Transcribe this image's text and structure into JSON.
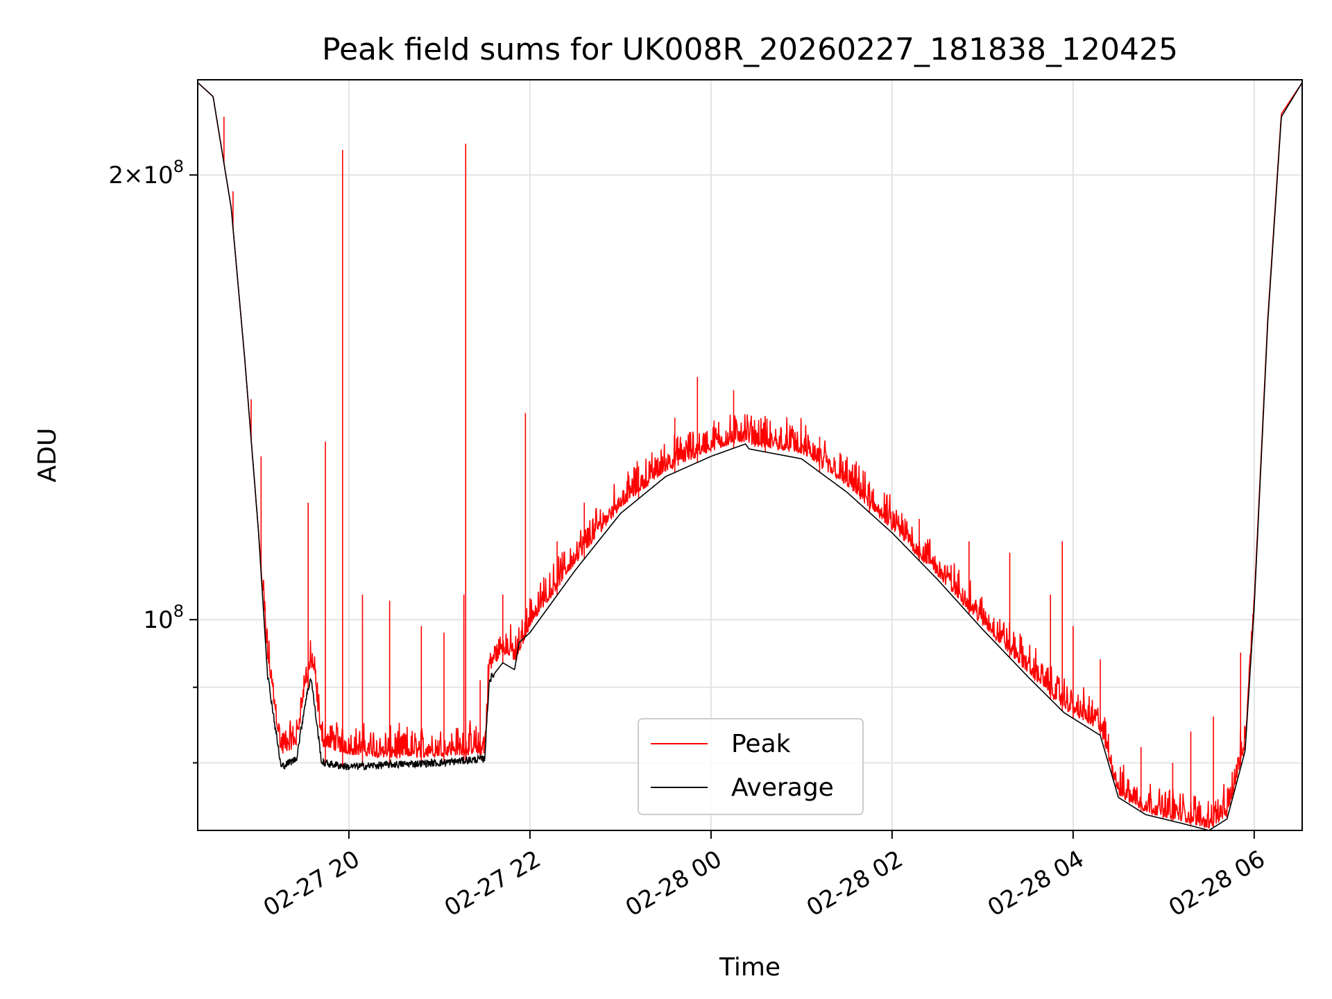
{
  "chart_data": {
    "type": "line",
    "title": "Peak field sums for UK008R_20260227_181838_120425",
    "xlabel": "Time",
    "ylabel": "ADU",
    "yscale": "log",
    "grid": true,
    "legend_position": "bottom-center",
    "x_unit": "hours since 2026-02-27 00:00",
    "xlim": [
      18.33,
      30.53
    ],
    "ylim": [
      72000000,
      232000000
    ],
    "x_ticks": [
      {
        "value": 20,
        "label": "02-27 20"
      },
      {
        "value": 22,
        "label": "02-27 22"
      },
      {
        "value": 24,
        "label": "02-28 00"
      },
      {
        "value": 26,
        "label": "02-28 02"
      },
      {
        "value": 28,
        "label": "02-28 04"
      },
      {
        "value": 30,
        "label": "02-28 06"
      }
    ],
    "y_ticks": [
      {
        "value": 200000000,
        "label_base": "2×10",
        "label_exp": "8"
      },
      {
        "value": 100000000,
        "label_base": "10",
        "label_exp": "8"
      }
    ],
    "y_minor_ticks": [
      80000000,
      90000000
    ],
    "series": [
      {
        "name": "Peak",
        "color": "#ff0000",
        "points": [
          [
            18.33,
            231000000
          ],
          [
            18.5,
            226000000
          ],
          [
            18.7,
            190000000
          ],
          [
            18.85,
            150000000
          ],
          [
            19.0,
            115000000
          ],
          [
            19.1,
            94000000
          ],
          [
            19.25,
            81000000
          ],
          [
            19.42,
            82000000
          ],
          [
            19.52,
            90000000
          ],
          [
            19.6,
            93000000
          ],
          [
            19.7,
            82000000
          ],
          [
            20.0,
            81000000
          ],
          [
            20.5,
            80500000
          ],
          [
            21.0,
            80800000
          ],
          [
            21.5,
            81000000
          ],
          [
            21.55,
            92000000
          ],
          [
            21.7,
            95000000
          ],
          [
            21.85,
            93500000
          ],
          [
            22.0,
            99000000
          ],
          [
            22.5,
            109000000
          ],
          [
            23.0,
            119000000
          ],
          [
            23.5,
            126000000
          ],
          [
            24.0,
            130000000
          ],
          [
            24.35,
            132000000
          ],
          [
            24.5,
            131000000
          ],
          [
            25.0,
            129500000
          ],
          [
            25.5,
            123000000
          ],
          [
            26.0,
            115000000
          ],
          [
            26.5,
            107000000
          ],
          [
            27.0,
            99000000
          ],
          [
            27.5,
            92000000
          ],
          [
            27.9,
            87000000
          ],
          [
            28.3,
            84000000
          ],
          [
            28.5,
            76000000
          ],
          [
            28.8,
            74000000
          ],
          [
            29.2,
            73000000
          ],
          [
            29.5,
            72200000
          ],
          [
            29.7,
            73500000
          ],
          [
            29.9,
            82000000
          ],
          [
            30.0,
            103000000
          ],
          [
            30.15,
            160000000
          ],
          [
            30.3,
            220000000
          ],
          [
            30.53,
            231000000
          ]
        ],
        "spikes": [
          [
            18.62,
            219000000
          ],
          [
            18.72,
            195000000
          ],
          [
            18.92,
            141000000
          ],
          [
            19.03,
            129000000
          ],
          [
            19.55,
            120000000
          ],
          [
            19.74,
            132000000
          ],
          [
            19.93,
            208000000
          ],
          [
            20.15,
            104000000
          ],
          [
            20.45,
            103000000
          ],
          [
            20.8,
            99000000
          ],
          [
            21.05,
            98000000
          ],
          [
            21.27,
            104000000
          ],
          [
            21.29,
            210000000
          ],
          [
            21.45,
            91000000
          ],
          [
            21.7,
            104000000
          ],
          [
            21.95,
            138000000
          ],
          [
            22.3,
            113000000
          ],
          [
            22.6,
            120000000
          ],
          [
            23.2,
            127000000
          ],
          [
            23.6,
            137000000
          ],
          [
            23.85,
            146000000
          ],
          [
            24.25,
            143000000
          ],
          [
            24.6,
            136000000
          ],
          [
            25.2,
            133000000
          ],
          [
            25.75,
            124000000
          ],
          [
            26.3,
            117000000
          ],
          [
            26.85,
            113000000
          ],
          [
            27.3,
            111000000
          ],
          [
            27.75,
            104000000
          ],
          [
            27.88,
            113000000
          ],
          [
            28.0,
            99000000
          ],
          [
            28.3,
            94000000
          ],
          [
            28.75,
            82000000
          ],
          [
            29.1,
            80000000
          ],
          [
            29.3,
            84000000
          ],
          [
            29.55,
            86000000
          ],
          [
            29.85,
            95000000
          ]
        ]
      },
      {
        "name": "Average",
        "color": "#000000",
        "points": [
          [
            18.33,
            231000000
          ],
          [
            18.5,
            226000000
          ],
          [
            18.7,
            190000000
          ],
          [
            18.85,
            150000000
          ],
          [
            19.0,
            115000000
          ],
          [
            19.1,
            92000000
          ],
          [
            19.25,
            79500000
          ],
          [
            19.42,
            80500000
          ],
          [
            19.52,
            88000000
          ],
          [
            19.58,
            91500000
          ],
          [
            19.7,
            80000000
          ],
          [
            20.0,
            79500000
          ],
          [
            20.5,
            79800000
          ],
          [
            21.0,
            80000000
          ],
          [
            21.5,
            80500000
          ],
          [
            21.55,
            91000000
          ],
          [
            21.7,
            93500000
          ],
          [
            21.83,
            92500000
          ],
          [
            21.88,
            96500000
          ],
          [
            22.0,
            98000000
          ],
          [
            22.5,
            108000000
          ],
          [
            23.0,
            118000000
          ],
          [
            23.5,
            125000000
          ],
          [
            24.0,
            129000000
          ],
          [
            24.38,
            131500000
          ],
          [
            24.42,
            130500000
          ],
          [
            25.0,
            128500000
          ],
          [
            25.5,
            122000000
          ],
          [
            26.0,
            114500000
          ],
          [
            26.5,
            106500000
          ],
          [
            27.0,
            98500000
          ],
          [
            27.5,
            91500000
          ],
          [
            27.9,
            86500000
          ],
          [
            28.3,
            83500000
          ],
          [
            28.5,
            75800000
          ],
          [
            28.8,
            73800000
          ],
          [
            29.2,
            72800000
          ],
          [
            29.5,
            72000000
          ],
          [
            29.7,
            73300000
          ],
          [
            29.9,
            81500000
          ],
          [
            30.0,
            102000000
          ],
          [
            30.15,
            159000000
          ],
          [
            30.3,
            219000000
          ],
          [
            30.53,
            231000000
          ]
        ]
      }
    ]
  }
}
